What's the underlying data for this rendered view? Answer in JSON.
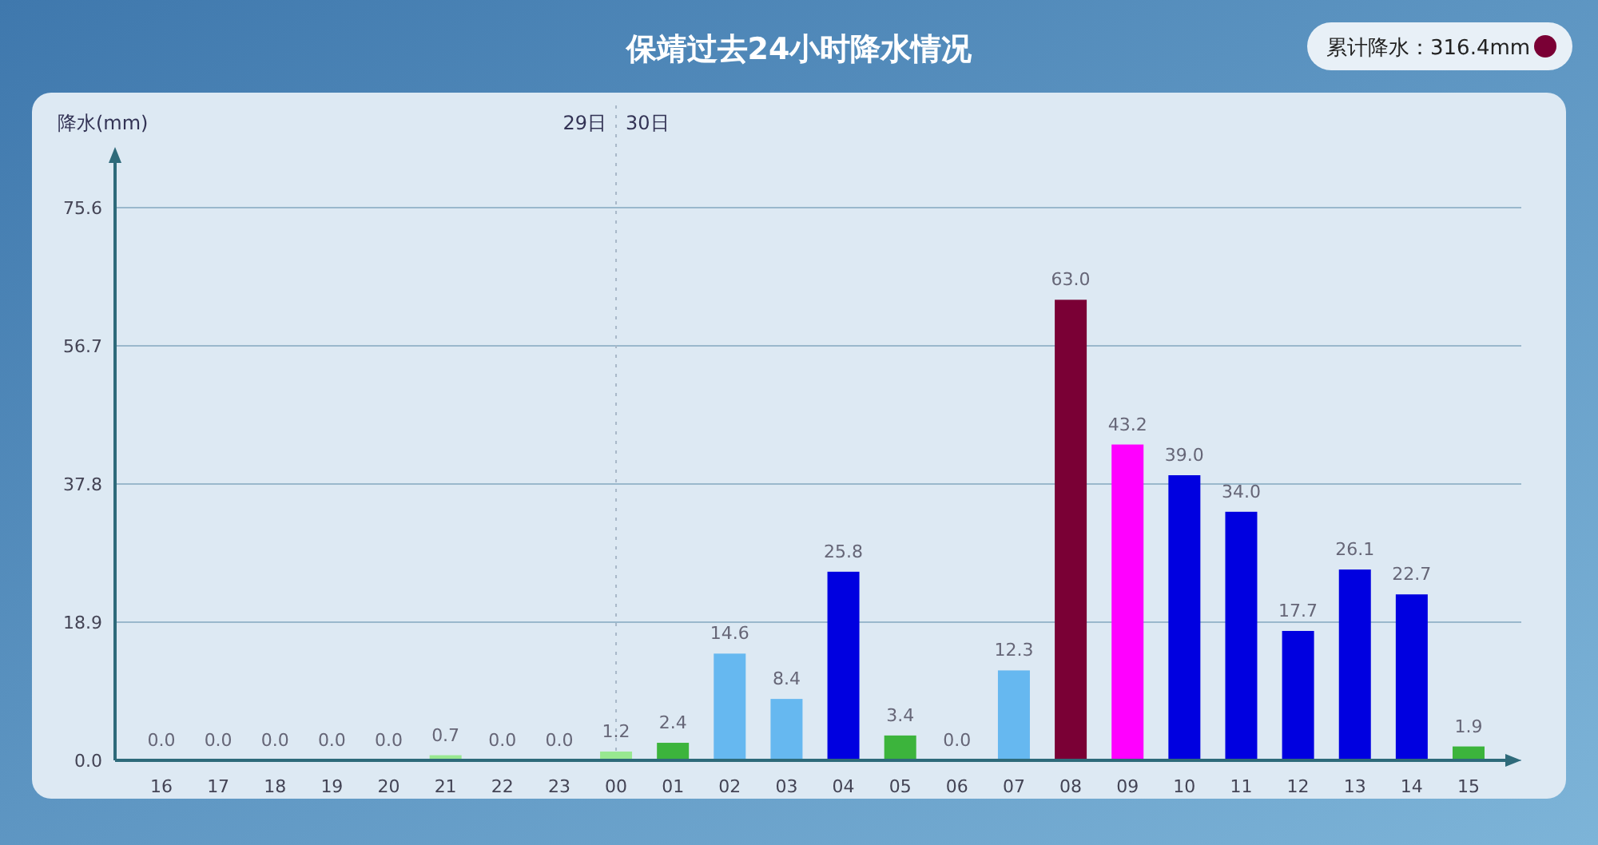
{
  "chart_data": {
    "type": "bar",
    "title": "保靖过去24小时降水情况",
    "ylabel": "降水(mm)",
    "categories": [
      "16",
      "17",
      "18",
      "19",
      "20",
      "21",
      "22",
      "23",
      "00",
      "01",
      "02",
      "03",
      "04",
      "05",
      "06",
      "07",
      "08",
      "09",
      "10",
      "11",
      "12",
      "13",
      "14",
      "15"
    ],
    "values": [
      0,
      0,
      0,
      0,
      0,
      0.7,
      0,
      0,
      1.2,
      2.4,
      14.6,
      8.4,
      25.8,
      3.4,
      0,
      12.3,
      63.0,
      43.2,
      39.0,
      34.0,
      17.7,
      26.1,
      22.7,
      1.9
    ],
    "colors": [
      "#ffffff",
      "#ffffff",
      "#ffffff",
      "#ffffff",
      "#ffffff",
      "#98e890",
      "#ffffff",
      "#ffffff",
      "#98e890",
      "#3cb43c",
      "#66b8f0",
      "#66b8f0",
      "#0000e0",
      "#3cb43c",
      "#ffffff",
      "#66b8f0",
      "#7a0035",
      "#ff00ff",
      "#0000e0",
      "#0000e0",
      "#0000e0",
      "#0000e0",
      "#0000e0",
      "#3cb43c"
    ],
    "ylim": [
      0,
      75.6
    ],
    "yticks": [
      {
        "value": 0,
        "label": "0.0"
      },
      {
        "value": 18.9,
        "label": "18.9"
      },
      {
        "value": 37.8,
        "label": "37.8"
      },
      {
        "value": 56.7,
        "label": "56.7"
      },
      {
        "value": 75.6,
        "label": "75.6"
      }
    ],
    "grid": "y",
    "value_labels": [
      "0.0",
      "0.0",
      "0.0",
      "0.0",
      "0.0",
      "0.7",
      "0.0",
      "0.0",
      "1.2",
      "2.4",
      "14.6",
      "8.4",
      "25.8",
      "3.4",
      "0.0",
      "12.3",
      "63.0",
      "43.2",
      "39.0",
      "34.0",
      "17.7",
      "26.1",
      "22.7",
      "1.9"
    ],
    "ref_lines": [
      {
        "axis": "x",
        "value": "00",
        "line_style": "dotted",
        "color": "#a8b8c8"
      }
    ],
    "annotations": [
      "29日",
      "30日",
      "累计降水：316.4mm"
    ]
  }
}
